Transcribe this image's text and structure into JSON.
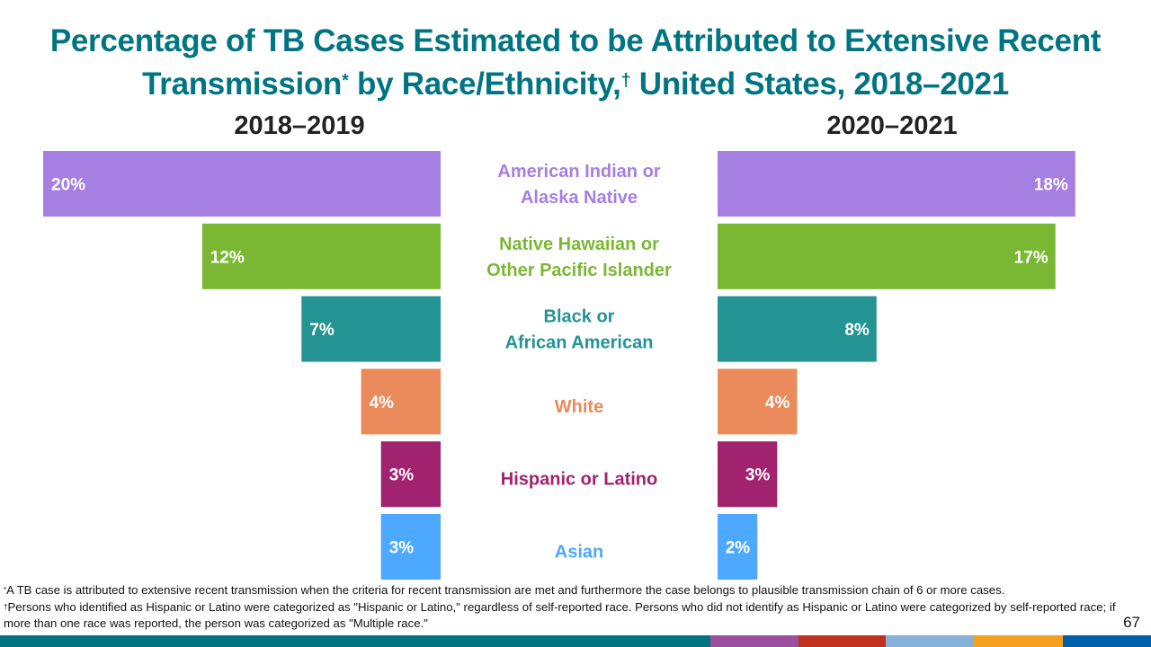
{
  "title": {
    "line1": "Percentage of TB Cases Estimated to be Attributed to Extensive Recent",
    "line2_pre": "Transmission",
    "line2_mark1": "*",
    "line2_mid": " by Race/Ethnicity,",
    "line2_mark2": "†",
    "line2_post": " United States, 2018–2021"
  },
  "chart_data": {
    "type": "bar",
    "orientation": "horizontal-butterfly",
    "title": "Percentage of TB Cases Estimated to be Attributed to Extensive Recent Transmission* by Race/Ethnicity,† United States, 2018–2021",
    "categories": [
      "American Indian or Alaska Native",
      "Native Hawaiian or Other Pacific Islander",
      "Black or African American",
      "White",
      "Hispanic or Latino",
      "Asian"
    ],
    "category_lines": [
      [
        "American Indian or",
        "Alaska Native"
      ],
      [
        "Native Hawaiian or",
        "Other Pacific Islander"
      ],
      [
        "Black or",
        "African American"
      ],
      [
        "White"
      ],
      [
        "Hispanic or Latino"
      ],
      [
        "Asian"
      ]
    ],
    "category_colors": [
      "#A67FE3",
      "#7AB833",
      "#249393",
      "#EB8A5B",
      "#A1226F",
      "#4DA9FF"
    ],
    "series": [
      {
        "name": "2018–2019",
        "values": [
          20,
          12,
          7,
          4,
          3,
          3
        ],
        "labels": [
          "20%",
          "12%",
          "7%",
          "4%",
          "3%",
          "3%"
        ]
      },
      {
        "name": "2020–2021",
        "values": [
          18,
          17,
          8,
          4,
          3,
          2
        ],
        "labels": [
          "18%",
          "17%",
          "8%",
          "4%",
          "3%",
          "2%"
        ]
      }
    ],
    "xlabel": "",
    "ylabel": "",
    "unit": "%",
    "xlim": [
      0,
      20
    ],
    "grid": false,
    "legend": "none"
  },
  "footnotes": {
    "note1_mark": "*",
    "note1": "A TB case is attributed to extensive recent transmission when the criteria for recent transmission are met and furthermore  the case belongs to plausible transmission chain of 6 or more  cases.",
    "note2_mark": "†",
    "note2": "Persons who  identified as Hispanic or Latino were categorized as \"Hispanic or Latino,\" regardless of self-reported race. Persons who  did not identify as Hispanic or Latino were categorized by self-reported race; if more  than one race was reported,  the person was categorized as \"Multiple race.\""
  },
  "page_number": "67",
  "bottom_band_colors": [
    "#007582",
    "#9B4F9E",
    "#C1311D",
    "#86B1D8",
    "#F5A01F",
    "#005EAA"
  ]
}
